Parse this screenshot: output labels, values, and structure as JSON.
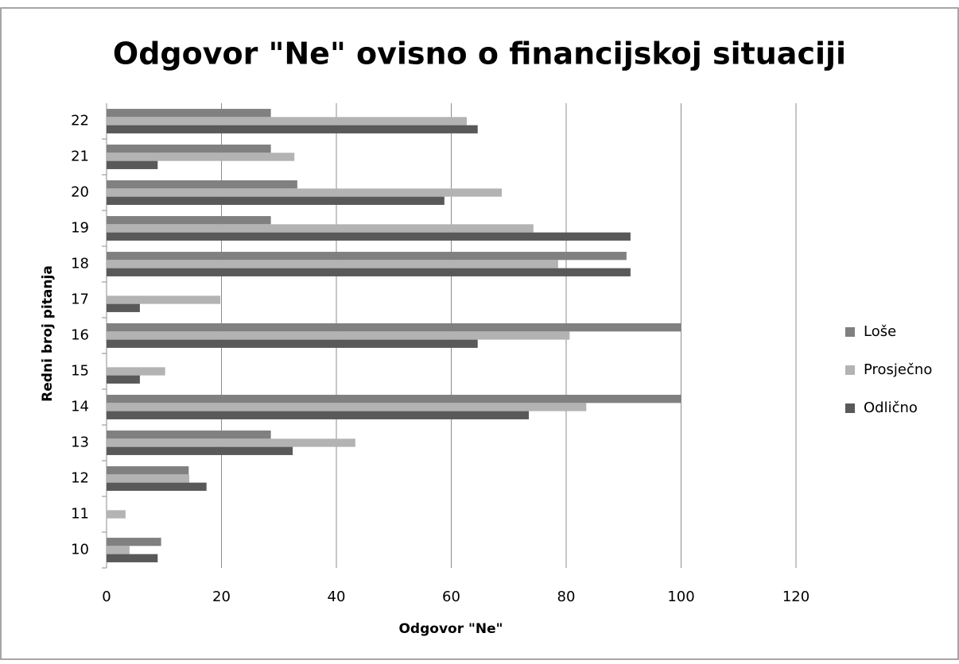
{
  "chart_data": {
    "type": "bar",
    "orientation": "horizontal",
    "title": "Odgovor \"Ne\" ovisno o financijskoj situaciji",
    "xlabel": "Odgovor \"Ne\"",
    "ylabel": "Redni broj pitanja",
    "categories": [
      "10",
      "11",
      "12",
      "13",
      "14",
      "15",
      "16",
      "17",
      "18",
      "19",
      "20",
      "21",
      "22"
    ],
    "series": [
      {
        "name": "Loše",
        "color": "#808080",
        "values": [
          9.5,
          0,
          14.3,
          28.6,
          100,
          0,
          100,
          0,
          90.5,
          28.6,
          33.2,
          28.6,
          28.6
        ]
      },
      {
        "name": "Prosječno",
        "color": "#b3b3b3",
        "values": [
          4.0,
          3.3,
          14.4,
          43.3,
          83.5,
          10.2,
          80.6,
          19.8,
          78.6,
          74.3,
          68.8,
          32.7,
          62.7
        ]
      },
      {
        "name": "Odlično",
        "color": "#595959",
        "values": [
          8.9,
          0,
          17.4,
          32.4,
          73.5,
          5.8,
          64.6,
          5.8,
          91.2,
          91.2,
          58.8,
          8.9,
          64.6
        ]
      }
    ],
    "xlim": [
      0,
      120
    ],
    "xticks": [
      0,
      20,
      40,
      60,
      80,
      100,
      120
    ],
    "grid": true,
    "legend": "right"
  }
}
